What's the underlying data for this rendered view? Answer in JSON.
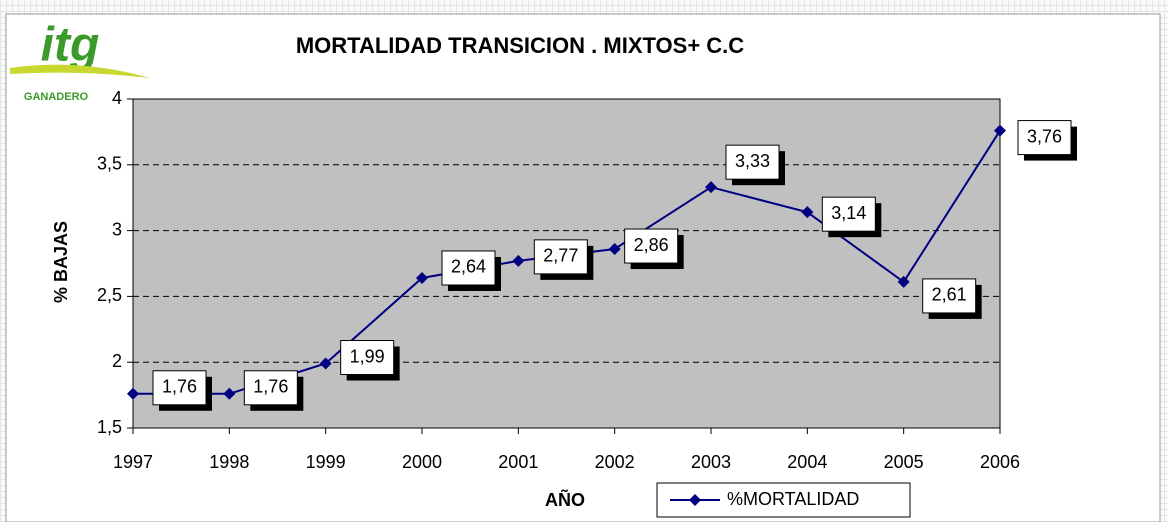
{
  "chart_data": {
    "type": "line",
    "title": "MORTALIDAD TRANSICION . MIXTOS+ C.C",
    "logo": {
      "text": "itg",
      "subtitle": "GANADERO"
    },
    "x_label": "AÑO",
    "y_label": "% BAJAS",
    "categories": [
      "1997",
      "1998",
      "1999",
      "2000",
      "2001",
      "2002",
      "2003",
      "2004",
      "2005",
      "2006"
    ],
    "series": [
      {
        "name": "%MORTALIDAD",
        "color": "#000080",
        "values": [
          1.76,
          1.76,
          1.99,
          2.64,
          2.77,
          2.86,
          3.33,
          3.14,
          2.61,
          3.76
        ],
        "value_labels": [
          "1,76",
          "1,76",
          "1,99",
          "2,64",
          "2,77",
          "2,86",
          "3,33",
          "3,14",
          "2,61",
          "3,76"
        ]
      }
    ],
    "ylim": [
      1.5,
      4
    ],
    "yticks": [
      {
        "value": 1.5,
        "label": "1,5"
      },
      2,
      {
        "value": 2.5,
        "label": "2,5"
      },
      3,
      {
        "value": 3.5,
        "label": "3,5"
      },
      4
    ],
    "grid": true,
    "legend": "bottom"
  }
}
